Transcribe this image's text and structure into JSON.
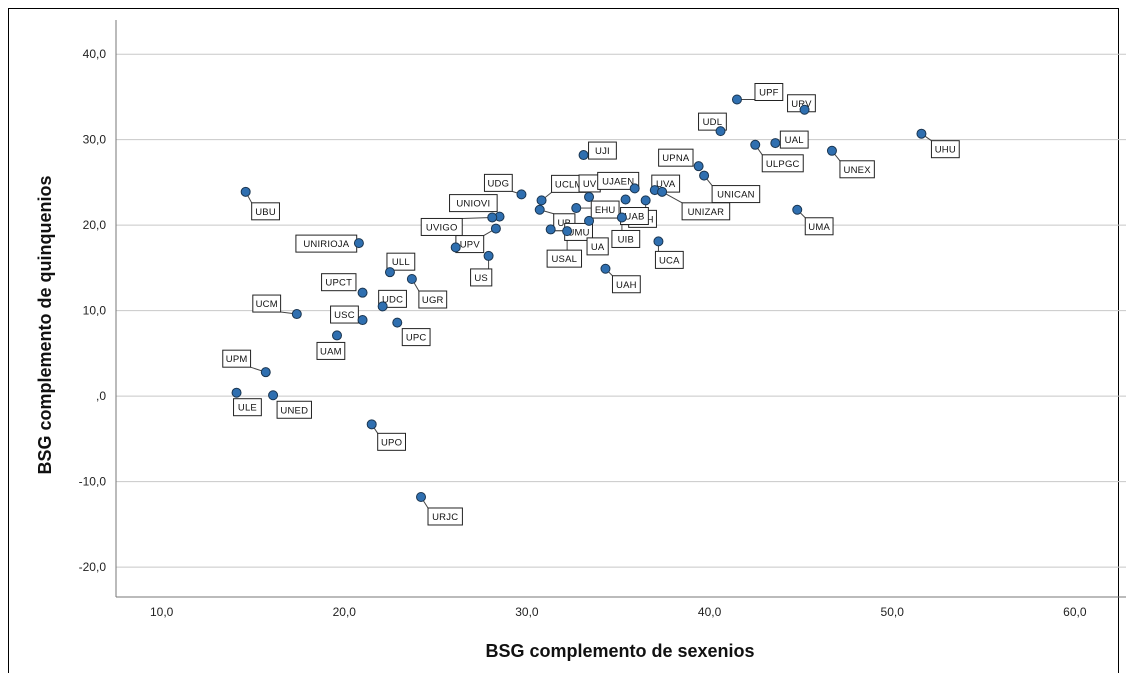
{
  "chart_data": {
    "type": "scatter",
    "title": "",
    "xlabel": "BSG complemento de sexenios",
    "ylabel": "BSG complemento de quinquenios",
    "xlim": [
      7.5,
      62.8
    ],
    "ylim": [
      -23.5,
      44.0
    ],
    "x_ticks": [
      10,
      20,
      30,
      40,
      50,
      60
    ],
    "y_ticks": [
      -20,
      -10,
      0,
      10,
      20,
      30,
      40
    ],
    "x_tick_labels": [
      "10,0",
      "20,0",
      "30,0",
      "40,0",
      "50,0",
      "60,0"
    ],
    "y_tick_labels": [
      "-20,0",
      "-10,0",
      ",0",
      "10,0",
      "20,0",
      "30,0",
      "40,0"
    ],
    "grid": "horizontal",
    "legend": "none",
    "marker_color": "#2f6fb0",
    "points": [
      {
        "label": "UPF",
        "x": 41.5,
        "y": 34.7
      },
      {
        "label": "URV",
        "x": 45.2,
        "y": 33.5
      },
      {
        "label": "UDL",
        "x": 40.6,
        "y": 31.0
      },
      {
        "label": "UAL",
        "x": 43.6,
        "y": 29.6
      },
      {
        "label": "ULPGC",
        "x": 42.5,
        "y": 29.4
      },
      {
        "label": "UHU",
        "x": 51.6,
        "y": 30.7
      },
      {
        "label": "UNEX",
        "x": 46.7,
        "y": 28.7
      },
      {
        "label": "UJI",
        "x": 33.1,
        "y": 28.2
      },
      {
        "label": "UPNA",
        "x": 39.4,
        "y": 26.9
      },
      {
        "label": "UNICAN",
        "x": 39.7,
        "y": 25.8
      },
      {
        "label": "UMA",
        "x": 44.8,
        "y": 21.8
      },
      {
        "label": "UDG",
        "x": 29.7,
        "y": 23.6
      },
      {
        "label": "UCLM",
        "x": 30.8,
        "y": 22.9
      },
      {
        "label": "UV",
        "x": 33.4,
        "y": 23.3
      },
      {
        "label": "UJAEN",
        "x": 35.9,
        "y": 24.3
      },
      {
        "label": "UVA",
        "x": 37.0,
        "y": 24.1
      },
      {
        "label": "UNIZAR",
        "x": 37.4,
        "y": 23.9
      },
      {
        "label": "UNIOVI",
        "x": 28.5,
        "y": 21.0
      },
      {
        "label": "UB",
        "x": 30.7,
        "y": 21.8
      },
      {
        "label": "EHU",
        "x": 32.7,
        "y": 22.0
      },
      {
        "label": "UMH",
        "x": 36.5,
        "y": 22.9
      },
      {
        "label": "UAB",
        "x": 35.4,
        "y": 23.0
      },
      {
        "label": "UVIGO",
        "x": 28.1,
        "y": 20.9
      },
      {
        "label": "UPV",
        "x": 28.3,
        "y": 19.6
      },
      {
        "label": "UMU",
        "x": 31.3,
        "y": 19.5
      },
      {
        "label": "USAL",
        "x": 32.2,
        "y": 19.3
      },
      {
        "label": "UA",
        "x": 33.4,
        "y": 20.5
      },
      {
        "label": "UIB",
        "x": 35.2,
        "y": 20.9
      },
      {
        "label": "UCA",
        "x": 37.2,
        "y": 18.1
      },
      {
        "label": "US",
        "x": 27.9,
        "y": 16.4
      },
      {
        "label": "UNIRIOJA",
        "x": 20.8,
        "y": 17.9
      },
      {
        "label": "UBU",
        "x": 14.6,
        "y": 23.9
      },
      {
        "label": "UAH",
        "x": 34.3,
        "y": 14.9
      },
      {
        "label": "ULL",
        "x": 22.5,
        "y": 14.5
      },
      {
        "label": "UGR",
        "x": 23.7,
        "y": 13.7
      },
      {
        "label": "UPCT",
        "x": 21.0,
        "y": 12.1
      },
      {
        "label": "UDC",
        "x": 22.1,
        "y": 10.5
      },
      {
        "label": "UCM",
        "x": 17.4,
        "y": 9.6
      },
      {
        "label": "USC",
        "x": 21.0,
        "y": 8.9
      },
      {
        "label": "UPC",
        "x": 22.9,
        "y": 8.6
      },
      {
        "label": "UAM",
        "x": 19.6,
        "y": 7.1
      },
      {
        "label": "UPM",
        "x": 15.7,
        "y": 2.8
      },
      {
        "label": "ULE",
        "x": 14.1,
        "y": 0.4
      },
      {
        "label": "UNED",
        "x": 16.1,
        "y": 0.1
      },
      {
        "label": "UPO",
        "x": 21.5,
        "y": -3.3
      },
      {
        "label": "URJC",
        "x": 24.2,
        "y": -11.8
      },
      {
        "label": "",
        "x": 26.1,
        "y": 17.4
      }
    ]
  }
}
